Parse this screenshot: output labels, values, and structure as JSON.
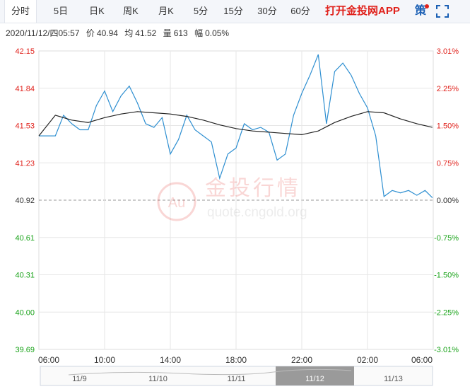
{
  "tabs": [
    {
      "label": "分时",
      "active": true
    },
    {
      "label": "5日"
    },
    {
      "label": "日K"
    },
    {
      "label": "周K"
    },
    {
      "label": "月K"
    },
    {
      "label": "5分"
    },
    {
      "label": "15分"
    },
    {
      "label": "30分"
    },
    {
      "label": "60分"
    }
  ],
  "app_link": "打开金投网APP",
  "strategy_label": "策",
  "info": {
    "datetime": "2020/11/12/四05:57",
    "price_label": "价",
    "price": "40.94",
    "avg_label": "均",
    "avg": "41.52",
    "volume_label": "量",
    "volume": "613",
    "change_label": "幅",
    "change": "0.05%"
  },
  "watermark": {
    "brand": "金投行情",
    "url": "quote.cngold.org",
    "logo": "Au"
  },
  "colors": {
    "up": "#e0211b",
    "down": "#1aa31a",
    "price_line": "#2e8fd1",
    "avg_line": "#222222",
    "grid": "#e6e6e6"
  },
  "chart_data": {
    "type": "line",
    "reference_price": 40.92,
    "y_ticks": [
      "42.15",
      "41.84",
      "41.53",
      "41.23",
      "40.92",
      "40.61",
      "40.31",
      "40.00",
      "39.69"
    ],
    "pct_ticks": [
      "3.01%",
      "2.25%",
      "1.50%",
      "0.75%",
      "0.00%",
      "-0.75%",
      "-1.50%",
      "-2.25%",
      "-3.01%"
    ],
    "ylim": [
      39.69,
      42.15
    ],
    "x_ticks": [
      "06:00",
      "10:00",
      "14:00",
      "18:00",
      "22:00",
      "02:00",
      "06:00"
    ],
    "series": [
      {
        "x": [
          "06:00",
          "07:00",
          "07:30",
          "08:00",
          "08:30",
          "09:00",
          "09:30",
          "10:00",
          "10:30",
          "11:00",
          "11:30",
          "12:00",
          "12:30",
          "13:00",
          "13:30",
          "14:00",
          "14:30",
          "15:00",
          "15:30",
          "16:00",
          "16:30",
          "17:00",
          "17:30",
          "18:00",
          "18:30",
          "19:00",
          "19:30",
          "20:00",
          "20:30",
          "21:00",
          "21:30",
          "22:00",
          "22:30",
          "23:00",
          "23:30",
          "00:00",
          "00:30",
          "01:00",
          "01:30",
          "02:00",
          "02:30",
          "03:00",
          "03:30",
          "04:00",
          "04:30",
          "05:00",
          "05:30",
          "05:57"
        ],
        "values": [
          41.45,
          41.45,
          41.62,
          41.55,
          41.5,
          41.5,
          41.7,
          41.82,
          41.65,
          41.78,
          41.86,
          41.72,
          41.55,
          41.52,
          41.6,
          41.3,
          41.42,
          41.62,
          41.5,
          41.45,
          41.4,
          41.1,
          41.3,
          41.35,
          41.55,
          41.5,
          41.52,
          41.48,
          41.25,
          41.3,
          41.62,
          41.8,
          41.95,
          42.12,
          41.55,
          41.98,
          42.05,
          41.95,
          41.8,
          41.68,
          41.45,
          40.95,
          41.0,
          40.98,
          41.0,
          40.96,
          41.0,
          40.94
        ]
      },
      {
        "x": [
          "06:00",
          "07:00",
          "08:00",
          "09:00",
          "10:00",
          "11:00",
          "12:00",
          "13:00",
          "14:00",
          "15:00",
          "16:00",
          "17:00",
          "18:00",
          "19:00",
          "20:00",
          "21:00",
          "22:00",
          "23:00",
          "00:00",
          "01:00",
          "02:00",
          "03:00",
          "04:00",
          "05:00",
          "05:57"
        ],
        "values": [
          41.45,
          41.62,
          41.58,
          41.56,
          41.6,
          41.63,
          41.65,
          41.64,
          41.63,
          41.61,
          41.58,
          41.54,
          41.51,
          41.49,
          41.48,
          41.47,
          41.46,
          41.49,
          41.56,
          41.61,
          41.65,
          41.64,
          41.59,
          41.55,
          41.52
        ]
      }
    ],
    "navigator": {
      "labels": [
        "11/9",
        "11/10",
        "11/11",
        "11/12",
        "11/13"
      ],
      "selected": "11/12"
    }
  }
}
